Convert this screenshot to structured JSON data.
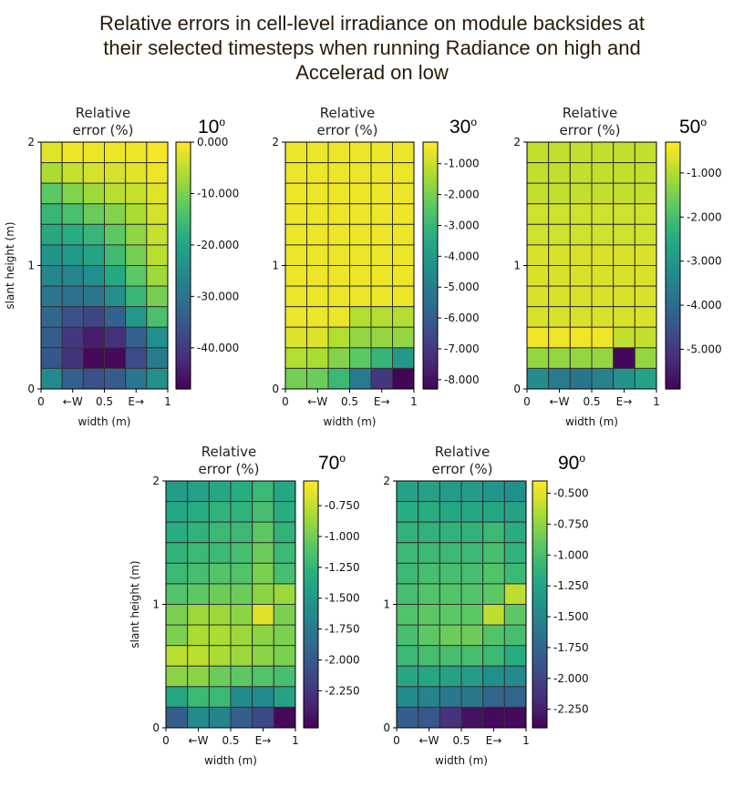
{
  "title_lines": [
    "Relative errors in cell-level irradiance on module backsides at",
    "their selected timesteps when running Radiance on high and",
    "Accelerad on low"
  ],
  "common": {
    "panel_title_lines": [
      "Relative",
      "error (%)"
    ],
    "xlabel": "width (m)",
    "ylabel": "slant height (m)",
    "xtick_labels": [
      "0",
      "←W",
      "0.5",
      "E→",
      "1"
    ],
    "ytick_labels": [
      "0",
      "1",
      "2"
    ],
    "degree_symbol": "o"
  },
  "colors": {
    "colormap": "viridis",
    "cell_border": "#333333"
  },
  "chart_data": [
    {
      "type": "heatmap",
      "angle": "10",
      "xlim": [
        0,
        1
      ],
      "ylim": [
        0,
        2
      ],
      "colorbar_range": [
        -48,
        0
      ],
      "colorbar_ticks": [
        "0.000",
        "-10.000",
        "-20.000",
        "-30.000",
        "-40.000"
      ],
      "colorbar_tick_values": [
        0,
        -10,
        -20,
        -30,
        -40
      ],
      "show_ylabel": true,
      "rows_top_to_bottom": [
        [
          -2,
          -1,
          -1,
          -1,
          -1,
          -0.5
        ],
        [
          -6,
          -4,
          -3,
          -3,
          -2,
          -1
        ],
        [
          -12,
          -9,
          -7,
          -5,
          -4,
          -2
        ],
        [
          -16,
          -14,
          -11,
          -9,
          -6,
          -3
        ],
        [
          -19,
          -18,
          -16,
          -12,
          -8,
          -4
        ],
        [
          -23,
          -22,
          -20,
          -15,
          -10,
          -5
        ],
        [
          -26,
          -26,
          -24,
          -19,
          -12,
          -7
        ],
        [
          -29,
          -30,
          -29,
          -24,
          -16,
          -10
        ],
        [
          -32,
          -36,
          -38,
          -33,
          -22,
          -14
        ],
        [
          -34,
          -40,
          -44,
          -41,
          -33,
          -24
        ],
        [
          -35,
          -41,
          -47,
          -47,
          -37,
          -28
        ],
        [
          -25,
          -33,
          -36,
          -34,
          -29,
          -24
        ]
      ]
    },
    {
      "type": "heatmap",
      "angle": "30",
      "xlim": [
        0,
        1
      ],
      "ylim": [
        0,
        2
      ],
      "colorbar_range": [
        -8.3,
        -0.3
      ],
      "colorbar_ticks": [
        "-1.000",
        "-2.000",
        "-3.000",
        "-4.000",
        "-5.000",
        "-6.000",
        "-7.000",
        "-8.000"
      ],
      "colorbar_tick_values": [
        -1,
        -2,
        -3,
        -4,
        -5,
        -6,
        -7,
        -8
      ],
      "show_ylabel": false,
      "rows_top_to_bottom": [
        [
          -0.5,
          -0.5,
          -0.5,
          -0.5,
          -0.5,
          -0.5
        ],
        [
          -0.5,
          -0.5,
          -0.5,
          -0.5,
          -0.5,
          -0.5
        ],
        [
          -0.5,
          -0.5,
          -0.5,
          -0.5,
          -0.5,
          -0.5
        ],
        [
          -0.5,
          -0.5,
          -0.5,
          -0.5,
          -0.5,
          -0.5
        ],
        [
          -0.5,
          -0.5,
          -0.5,
          -0.5,
          -0.5,
          -0.5
        ],
        [
          -0.5,
          -0.5,
          -0.5,
          -0.5,
          -0.5,
          -0.5
        ],
        [
          -0.5,
          -0.5,
          -0.5,
          -0.5,
          -0.5,
          -0.5
        ],
        [
          -0.5,
          -0.5,
          -0.5,
          -0.5,
          -0.5,
          -0.5
        ],
        [
          -0.5,
          -0.5,
          -0.5,
          -1.2,
          -1.2,
          -1.2
        ],
        [
          -0.7,
          -0.7,
          -1.2,
          -1.6,
          -1.6,
          -1.6
        ],
        [
          -1.2,
          -1.3,
          -1.8,
          -2.3,
          -3.0,
          -4.0
        ],
        [
          -2.0,
          -2.1,
          -2.9,
          -5.0,
          -7.0,
          -8.2
        ]
      ]
    },
    {
      "type": "heatmap",
      "angle": "50",
      "xlim": [
        0,
        1
      ],
      "ylim": [
        0,
        2
      ],
      "colorbar_range": [
        -5.9,
        -0.3
      ],
      "colorbar_ticks": [
        "-1.000",
        "-2.000",
        "-3.000",
        "-4.000",
        "-5.000"
      ],
      "colorbar_tick_values": [
        -1,
        -2,
        -3,
        -4,
        -5
      ],
      "show_ylabel": false,
      "rows_top_to_bottom": [
        [
          -0.8,
          -0.8,
          -0.8,
          -0.8,
          -0.8,
          -0.8
        ],
        [
          -0.8,
          -0.8,
          -0.8,
          -0.8,
          -0.8,
          -0.8
        ],
        [
          -0.8,
          -0.8,
          -0.8,
          -0.8,
          -0.8,
          -0.8
        ],
        [
          -0.7,
          -0.7,
          -0.7,
          -0.7,
          -0.7,
          -0.7
        ],
        [
          -0.7,
          -0.7,
          -0.7,
          -0.7,
          -0.7,
          -0.7
        ],
        [
          -0.6,
          -0.6,
          -0.6,
          -0.6,
          -0.6,
          -0.6
        ],
        [
          -0.6,
          -0.6,
          -0.6,
          -0.6,
          -0.6,
          -0.6
        ],
        [
          -0.6,
          -0.6,
          -0.6,
          -0.6,
          -0.6,
          -0.6
        ],
        [
          -0.6,
          -0.6,
          -0.6,
          -0.6,
          -0.6,
          -0.6
        ],
        [
          -0.4,
          -0.4,
          -0.4,
          -0.4,
          -0.8,
          -0.8
        ],
        [
          -1.2,
          -1.2,
          -1.2,
          -1.2,
          -5.8,
          -1.2
        ],
        [
          -3.2,
          -3.6,
          -3.7,
          -3.4,
          -3.0,
          -2.7
        ]
      ]
    },
    {
      "type": "heatmap",
      "angle": "70",
      "xlim": [
        0,
        1
      ],
      "ylim": [
        0,
        2
      ],
      "colorbar_range": [
        -2.55,
        -0.55
      ],
      "colorbar_ticks": [
        "-0.750",
        "-1.000",
        "-1.250",
        "-1.500",
        "-1.750",
        "-2.000",
        "-2.250"
      ],
      "colorbar_tick_values": [
        -0.75,
        -1,
        -1.25,
        -1.5,
        -1.75,
        -2,
        -2.25
      ],
      "show_ylabel": true,
      "rows_top_to_bottom": [
        [
          -1.45,
          -1.4,
          -1.35,
          -1.3,
          -1.2,
          -1.35
        ],
        [
          -1.35,
          -1.3,
          -1.25,
          -1.25,
          -1.15,
          -1.3
        ],
        [
          -1.3,
          -1.25,
          -1.2,
          -1.2,
          -1.05,
          -1.25
        ],
        [
          -1.25,
          -1.2,
          -1.2,
          -1.15,
          -1.0,
          -1.2
        ],
        [
          -1.2,
          -1.15,
          -1.1,
          -1.1,
          -0.95,
          -1.15
        ],
        [
          -1.1,
          -1.05,
          -1.0,
          -1.0,
          -0.9,
          -0.85
        ],
        [
          -0.95,
          -0.85,
          -0.85,
          -0.9,
          -0.65,
          -0.95
        ],
        [
          -0.95,
          -0.8,
          -0.8,
          -0.85,
          -0.9,
          -0.95
        ],
        [
          -0.75,
          -0.75,
          -0.8,
          -0.85,
          -0.9,
          -0.95
        ],
        [
          -0.9,
          -0.9,
          -1.0,
          -1.05,
          -1.1,
          -1.15
        ],
        [
          -1.35,
          -1.2,
          -1.2,
          -1.6,
          -1.6,
          -1.4
        ],
        [
          -1.95,
          -1.6,
          -1.65,
          -1.95,
          -2.1,
          -2.5
        ]
      ]
    },
    {
      "type": "heatmap",
      "angle": "90",
      "xlim": [
        0,
        1
      ],
      "ylim": [
        0,
        2
      ],
      "colorbar_range": [
        -2.4,
        -0.4
      ],
      "colorbar_ticks": [
        "-0.500",
        "-0.750",
        "-1.000",
        "-1.250",
        "-1.500",
        "-1.750",
        "-2.000",
        "-2.250"
      ],
      "colorbar_tick_values": [
        -0.5,
        -0.75,
        -1,
        -1.25,
        -1.5,
        -1.75,
        -2,
        -2.25
      ],
      "show_ylabel": false,
      "rows_top_to_bottom": [
        [
          -1.25,
          -1.25,
          -1.3,
          -1.3,
          -1.35,
          -1.4
        ],
        [
          -1.15,
          -1.15,
          -1.2,
          -1.2,
          -1.2,
          -1.25
        ],
        [
          -1.1,
          -1.1,
          -1.1,
          -1.1,
          -1.05,
          -1.15
        ],
        [
          -1.05,
          -1.05,
          -1.05,
          -1.05,
          -1.0,
          -1.1
        ],
        [
          -1.05,
          -1.0,
          -1.0,
          -1.0,
          -0.95,
          -1.05
        ],
        [
          -1.0,
          -0.95,
          -0.95,
          -0.95,
          -0.9,
          -0.6
        ],
        [
          -0.95,
          -0.9,
          -0.9,
          -0.9,
          -0.6,
          -0.9
        ],
        [
          -1.0,
          -0.9,
          -0.85,
          -0.85,
          -0.95,
          -1.0
        ],
        [
          -1.05,
          -1.0,
          -1.0,
          -1.0,
          -1.05,
          -1.15
        ],
        [
          -1.2,
          -1.2,
          -1.25,
          -1.3,
          -1.4,
          -1.45
        ],
        [
          -1.45,
          -1.5,
          -1.6,
          -1.6,
          -1.75,
          -1.75
        ],
        [
          -1.8,
          -1.85,
          -2.1,
          -2.3,
          -2.35,
          -2.35
        ]
      ]
    }
  ]
}
